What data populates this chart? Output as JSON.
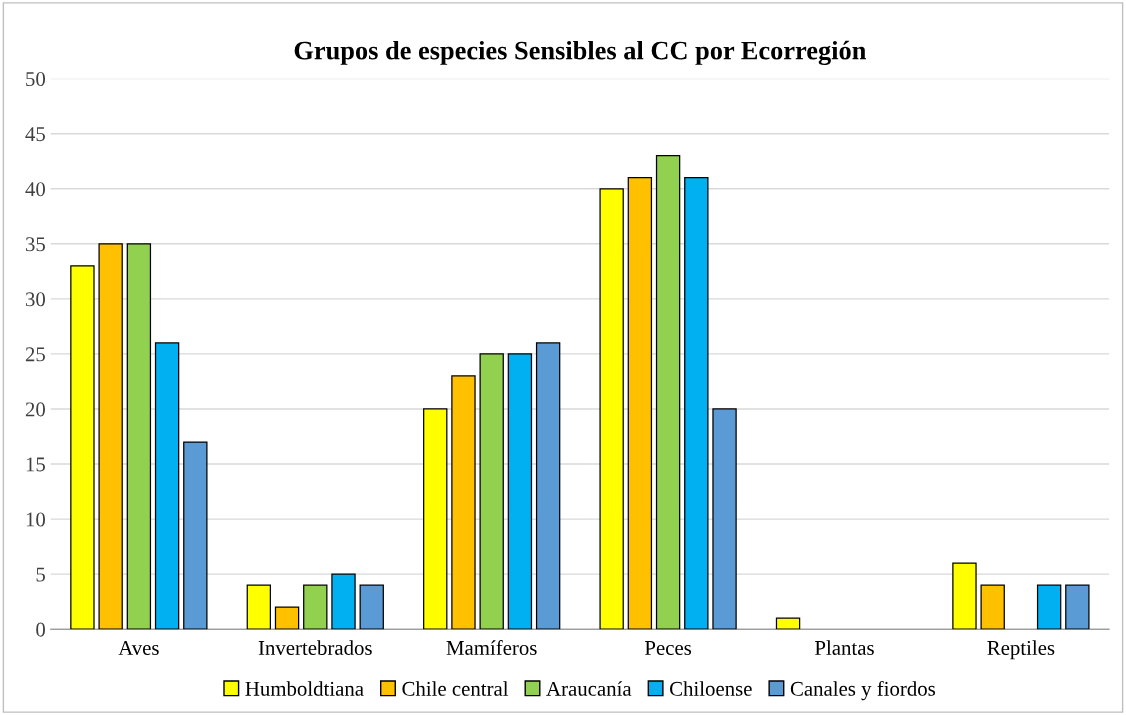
{
  "chart_data": {
    "type": "bar",
    "title": "Grupos de especies Sensibles al CC por Ecorregión",
    "categories": [
      "Aves",
      "Invertebrados",
      "Mamíferos",
      "Peces",
      "Plantas",
      "Reptiles"
    ],
    "series": [
      {
        "name": "Humboldtiana",
        "color": "#ffff00",
        "values": [
          33,
          4,
          20,
          40,
          1,
          6
        ]
      },
      {
        "name": "Chile central",
        "color": "#ffc000",
        "values": [
          35,
          2,
          23,
          41,
          0,
          4
        ]
      },
      {
        "name": "Araucanía",
        "color": "#92d050",
        "values": [
          35,
          4,
          25,
          43,
          0,
          0
        ]
      },
      {
        "name": "Chiloense",
        "color": "#00b0f0",
        "values": [
          26,
          5,
          25,
          41,
          0,
          4
        ]
      },
      {
        "name": "Canales y fiordos",
        "color": "#5b9bd5",
        "values": [
          17,
          4,
          26,
          20,
          0,
          4
        ]
      }
    ],
    "ylim": [
      0,
      50
    ],
    "yticks": [
      0,
      5,
      10,
      15,
      20,
      25,
      30,
      35,
      40,
      45,
      50
    ],
    "grid": "y",
    "legend": "bottom"
  }
}
